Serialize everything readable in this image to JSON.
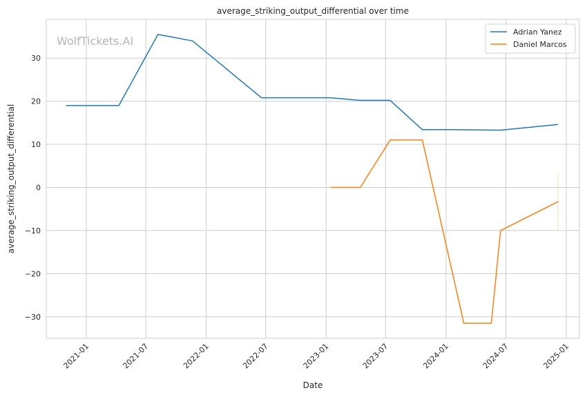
{
  "chart_data": {
    "type": "line",
    "title": "average_striking_output_differential over time",
    "xlabel": "Date",
    "ylabel": "average_striking_output_differential",
    "watermark": "WolfTickets.AI",
    "xlim": [
      "2020-09-01",
      "2025-02-10"
    ],
    "ylim": [
      -35,
      39
    ],
    "grid": true,
    "legend_position": "top-right",
    "x_ticks": [
      {
        "date": "2021-01-01",
        "label": "2021-01"
      },
      {
        "date": "2021-07-01",
        "label": "2021-07"
      },
      {
        "date": "2022-01-01",
        "label": "2022-01"
      },
      {
        "date": "2022-07-01",
        "label": "2022-07"
      },
      {
        "date": "2023-01-01",
        "label": "2023-01"
      },
      {
        "date": "2023-07-01",
        "label": "2023-07"
      },
      {
        "date": "2024-01-01",
        "label": "2024-01"
      },
      {
        "date": "2024-07-01",
        "label": "2024-07"
      },
      {
        "date": "2025-01-01",
        "label": "2025-01"
      }
    ],
    "y_ticks": [
      {
        "value": 30,
        "label": "30"
      },
      {
        "value": 20,
        "label": "20"
      },
      {
        "value": 10,
        "label": "10"
      },
      {
        "value": 0,
        "label": "0"
      },
      {
        "value": -10,
        "label": "−10"
      },
      {
        "value": -20,
        "label": "−20"
      },
      {
        "value": -30,
        "label": "−30"
      }
    ],
    "series": [
      {
        "name": "Adrian Yanez",
        "color": "#1f77b4",
        "points": [
          {
            "x": "2020-10-31",
            "y": 19.0
          },
          {
            "x": "2021-04-10",
            "y": 19.0
          },
          {
            "x": "2021-08-07",
            "y": 35.5
          },
          {
            "x": "2021-11-20",
            "y": 34.0
          },
          {
            "x": "2022-06-18",
            "y": 20.8
          },
          {
            "x": "2023-01-14",
            "y": 20.8
          },
          {
            "x": "2023-04-15",
            "y": 20.2
          },
          {
            "x": "2023-07-15",
            "y": 20.2
          },
          {
            "x": "2023-10-21",
            "y": 13.4
          },
          {
            "x": "2024-01-13",
            "y": 13.4
          },
          {
            "x": "2024-06-15",
            "y": 13.3
          },
          {
            "x": "2024-12-07",
            "y": 14.6
          }
        ]
      },
      {
        "name": "Daniel Marcos",
        "color": "#ff7f0e",
        "points": [
          {
            "x": "2023-01-14",
            "y": 0.0
          },
          {
            "x": "2023-04-15",
            "y": 0.0
          },
          {
            "x": "2023-07-15",
            "y": 11.0
          },
          {
            "x": "2023-10-21",
            "y": 11.0
          },
          {
            "x": "2024-02-24",
            "y": -31.5
          },
          {
            "x": "2024-05-18",
            "y": -31.5
          },
          {
            "x": "2024-06-15",
            "y": -10.0
          },
          {
            "x": "2024-12-07",
            "y": -3.3
          }
        ],
        "error_bar": {
          "x": "2024-12-07",
          "low": -10.0,
          "high": 3.3
        }
      }
    ]
  }
}
